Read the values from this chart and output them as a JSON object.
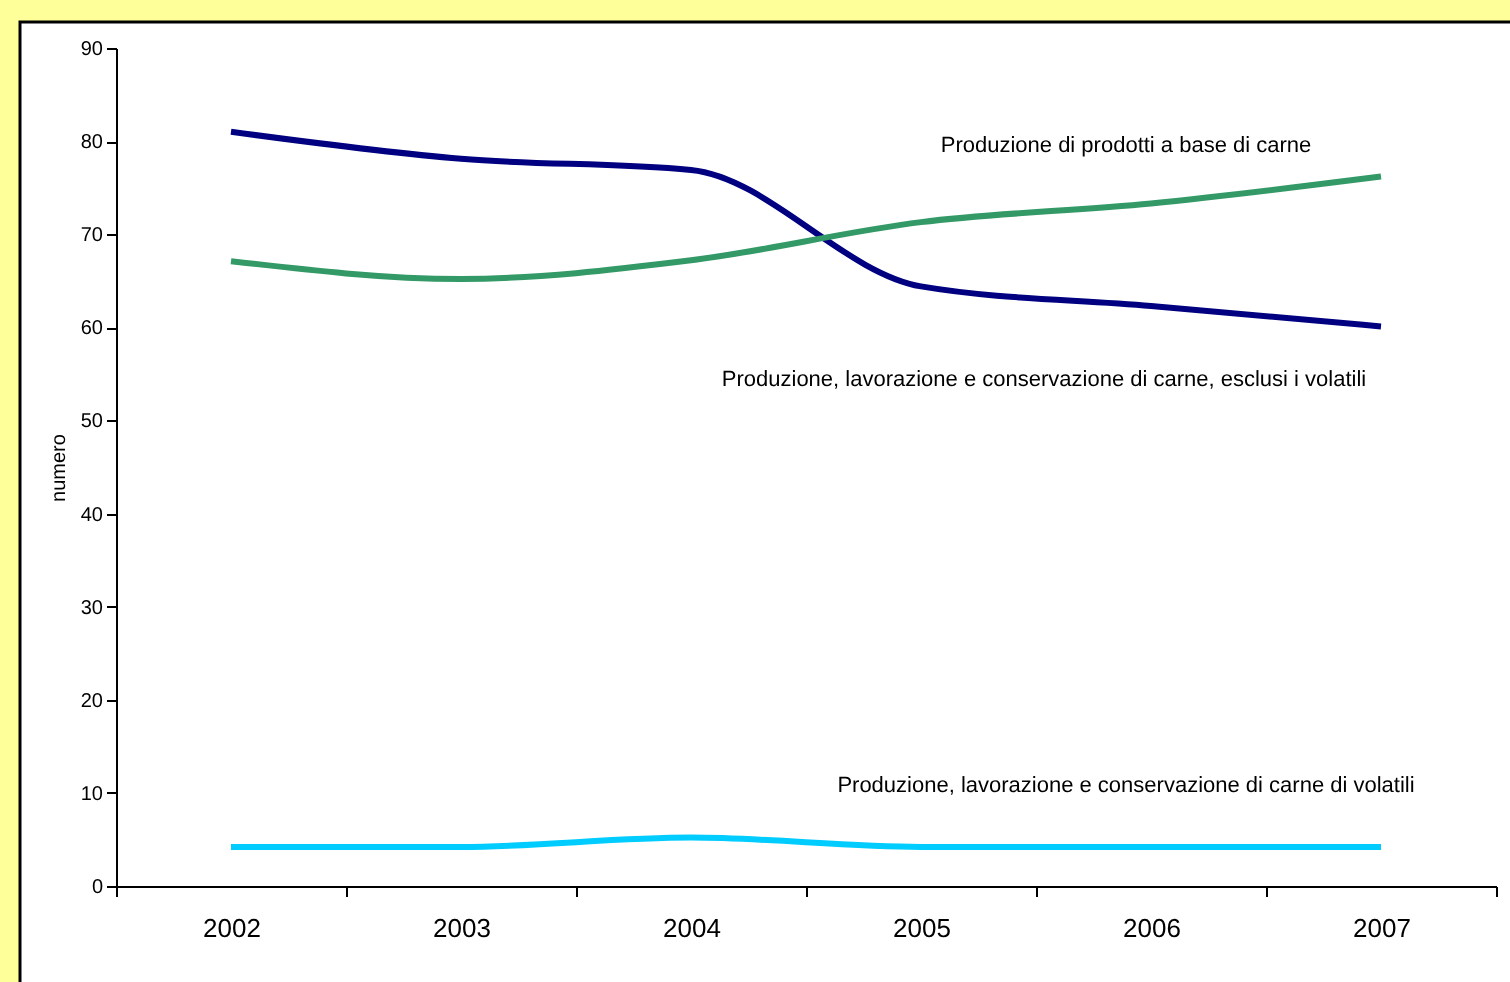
{
  "chart_data": {
    "type": "line",
    "ylabel": "numero",
    "categories": [
      "2002",
      "2003",
      "2004",
      "2005",
      "2006",
      "2007"
    ],
    "series": [
      {
        "name": "Produzione, lavorazione e conservazione di carne, esclusi i volatili",
        "color": "#000080",
        "values": [
          81.0,
          78.1,
          76.9,
          64.4,
          62.3,
          60.1
        ]
      },
      {
        "name": "Produzione di prodotti a base di carne",
        "color": "#339966",
        "values": [
          67.1,
          65.2,
          67.2,
          71.3,
          73.3,
          76.2
        ]
      },
      {
        "name": "Produzione, lavorazione e conservazione di carne di volatili",
        "color": "#00ccff",
        "values": [
          4.2,
          4.2,
          5.2,
          4.2,
          4.2,
          4.2
        ]
      }
    ],
    "ylim": [
      0,
      90
    ],
    "yticks": [
      0,
      10,
      20,
      30,
      40,
      50,
      60,
      70,
      80,
      90
    ],
    "grid": false,
    "legend": false,
    "line_style": "solid",
    "marker": "none"
  }
}
